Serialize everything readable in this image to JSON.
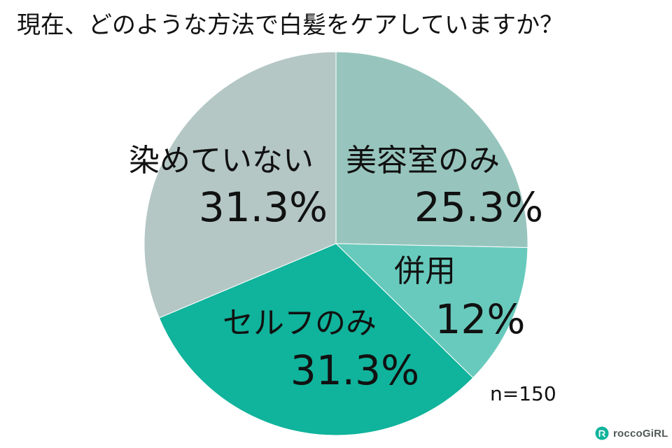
{
  "title": "現在、どのような方法で白髪をケアしていますか？",
  "sample_size": "n=150",
  "brand": {
    "name": "roccoGiRL",
    "icon": "brand-logo-icon"
  },
  "colors": {
    "salon": "#97c5bd",
    "combined": "#68cabd",
    "self": "#10b39b",
    "none": "#b4c7c5",
    "edge": "#ffffff"
  },
  "chart_data": {
    "type": "pie",
    "title": "現在、どのような方法で白髪をケアしていますか？",
    "labels": [
      "美容室のみ",
      "併用",
      "セルフのみ",
      "染めていない"
    ],
    "values": [
      25.3,
      12,
      31.3,
      31.3
    ],
    "value_labels": [
      "25.3%",
      "12%",
      "31.3%",
      "31.3%"
    ],
    "series": [
      {
        "values": [
          25.3,
          12,
          31.3,
          31.3
        ]
      }
    ],
    "legend": "none",
    "start_angle": "12 o'clock",
    "direction": "clockwise",
    "sample_size": "n=150"
  }
}
